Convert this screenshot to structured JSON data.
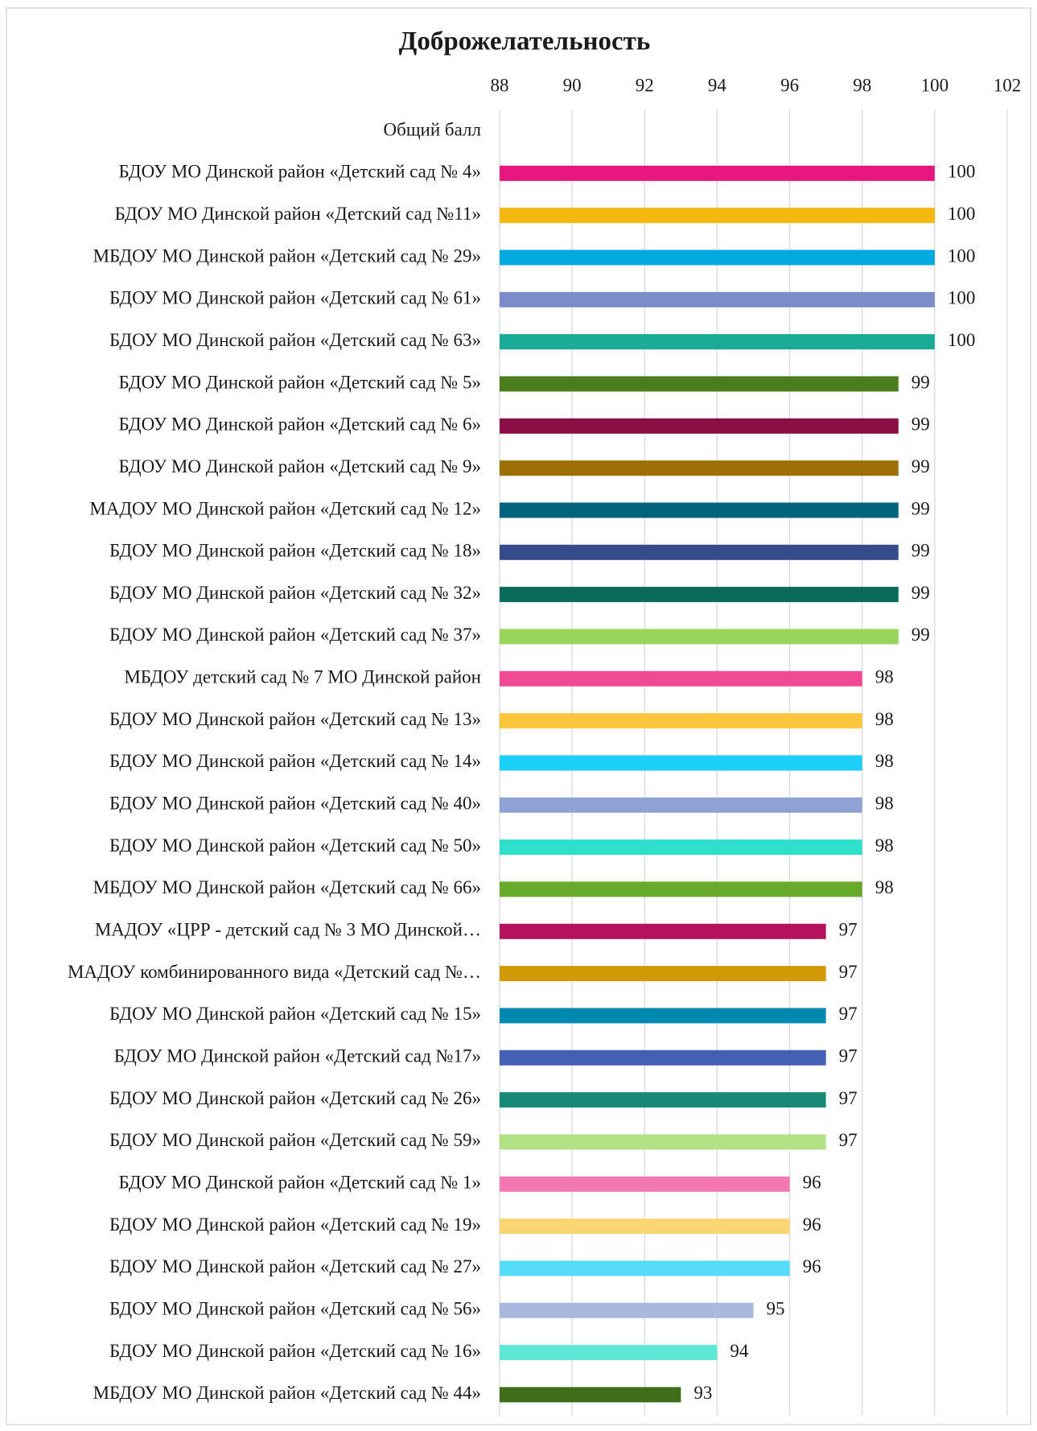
{
  "chart_data": {
    "type": "hbar",
    "title": "Доброжелательность",
    "categories": [
      "Общий балл",
      "БДОУ МО Динской район «Детский сад № 4»",
      "БДОУ МО Динской район «Детский сад №11»",
      "МБДОУ МО Динской район «Детский сад  № 29»",
      "БДОУ МО Динской район «Детский сад № 61»",
      "БДОУ МО Динской район «Детский сад № 63»",
      "БДОУ МО Динской район «Детский сад № 5»",
      "БДОУ МО Динской район «Детский сад № 6»",
      "БДОУ МО Динской район «Детский сад № 9»",
      "МАДОУ МО Динской район «Детский сад № 12»",
      "БДОУ МО Динской район «Детский сад № 18»",
      "БДОУ МО Динской район «Детский сад № 32»",
      "БДОУ МО Динской район «Детский сад № 37»",
      "МБДОУ детский сад № 7 МО Динской район",
      "БДОУ МО Динской район «Детский сад  № 13»",
      "БДОУ МО Динской район «Детский сад № 14»",
      "БДОУ МО Динской район «Детский сад № 40»",
      "БДОУ МО Динской район «Детский сад № 50»",
      "МБДОУ МО Динской район «Детский сад № 66»",
      "МАДОУ «ЦРР - детский сад № 3 МО Динской…",
      "МАДОУ комбинированного вида «Детский сад №…",
      "БДОУ МО Динской район «Детский сад № 15»",
      "БДОУ МО Динской район «Детский сад №17»",
      "БДОУ МО Динской район «Детский сад  № 26»",
      "БДОУ МО Динской район «Детский сад № 59»",
      "БДОУ МО Динской район «Детский сад № 1»",
      "БДОУ МО Динской район «Детский сад  № 19»",
      "БДОУ МО Динской район «Детский сад № 27»",
      "БДОУ МО Динской район «Детский сад № 56»",
      "БДОУ МО Динской район «Детский сад № 16»",
      "МБДОУ МО Динской район «Детский сад № 44»"
    ],
    "values": [
      null,
      100,
      100,
      100,
      100,
      100,
      99,
      99,
      99,
      99,
      99,
      99,
      99,
      98,
      98,
      98,
      98,
      98,
      98,
      97,
      97,
      97,
      97,
      97,
      97,
      96,
      96,
      96,
      95,
      94,
      93
    ],
    "colors": [
      null,
      "#e8177f",
      "#f5b80f",
      "#00a9e0",
      "#7b8cc8",
      "#1aab96",
      "#4b7d1c",
      "#8b0e44",
      "#9c6f07",
      "#00637d",
      "#364b8c",
      "#0b6b5a",
      "#97d65b",
      "#f04a95",
      "#fbc63c",
      "#1ccff6",
      "#90a2d4",
      "#2ee0cc",
      "#68ab2a",
      "#b5115e",
      "#d19a06",
      "#0089b0",
      "#4460b4",
      "#168a77",
      "#b1e286",
      "#f377b0",
      "#fcd672",
      "#54dcf9",
      "#aab8df",
      "#5ee8d8",
      "#3e6e1a"
    ],
    "xlim": [
      88,
      102
    ],
    "xticks": [
      88,
      90,
      92,
      94,
      96,
      98,
      100,
      102
    ],
    "grid": true
  }
}
